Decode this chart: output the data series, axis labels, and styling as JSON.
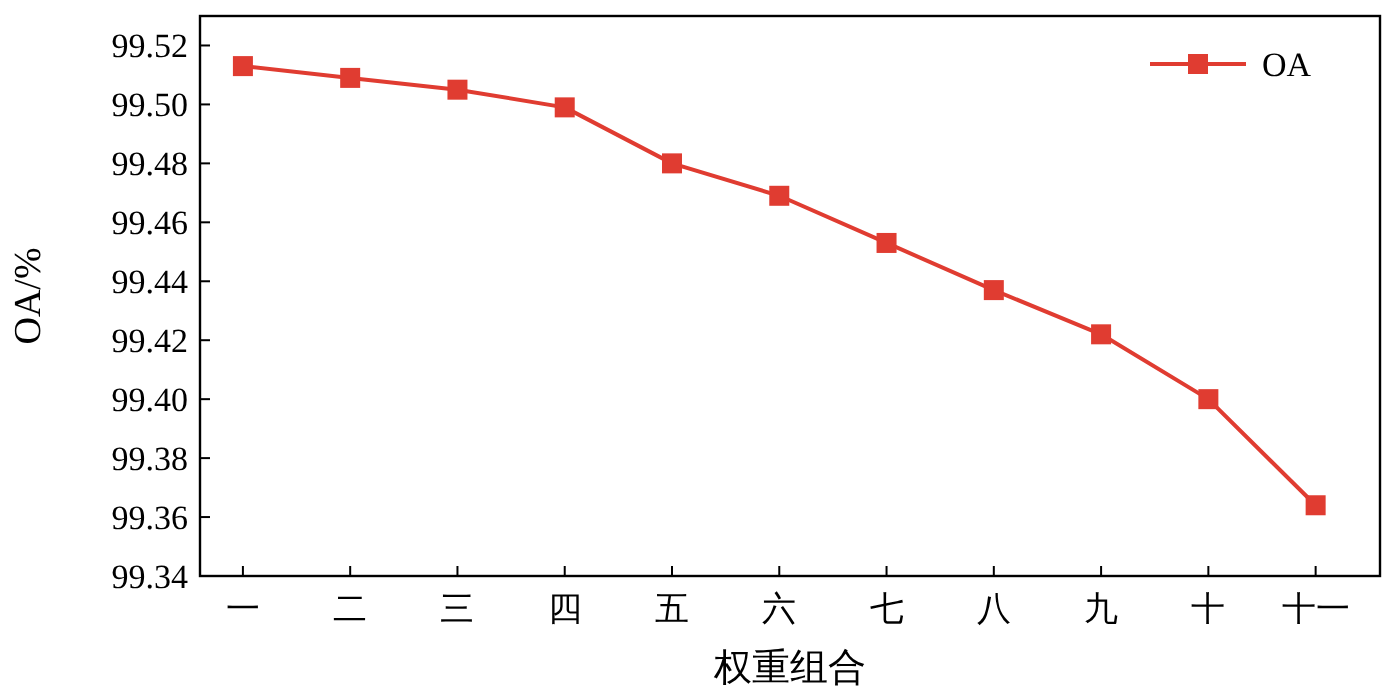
{
  "chart_data": {
    "type": "line",
    "xlabel": "权重组合",
    "ylabel": "OA/%",
    "categories": [
      "一",
      "二",
      "三",
      "四",
      "五",
      "六",
      "七",
      "八",
      "九",
      "十",
      "十一"
    ],
    "series": [
      {
        "name": "OA",
        "color": "#e03c31",
        "values": [
          99.513,
          99.509,
          99.505,
          99.499,
          99.48,
          99.469,
          99.453,
          99.437,
          99.422,
          99.4,
          99.364
        ]
      }
    ],
    "ylim": [
      99.34,
      99.53
    ],
    "yticks": [
      {
        "value": 99.34,
        "label": "99.34"
      },
      {
        "value": 99.36,
        "label": "99.36"
      },
      {
        "value": 99.38,
        "label": "99.38"
      },
      {
        "value": 99.4,
        "label": "99.40"
      },
      {
        "value": 99.42,
        "label": "99.42"
      },
      {
        "value": 99.44,
        "label": "99.44"
      },
      {
        "value": 99.46,
        "label": "99.46"
      },
      {
        "value": 99.48,
        "label": "99.48"
      },
      {
        "value": 99.5,
        "label": "99.50"
      },
      {
        "value": 99.52,
        "label": "99.52"
      }
    ],
    "legend": "top right",
    "marker": "square",
    "line_style": "solid",
    "grid": false
  }
}
